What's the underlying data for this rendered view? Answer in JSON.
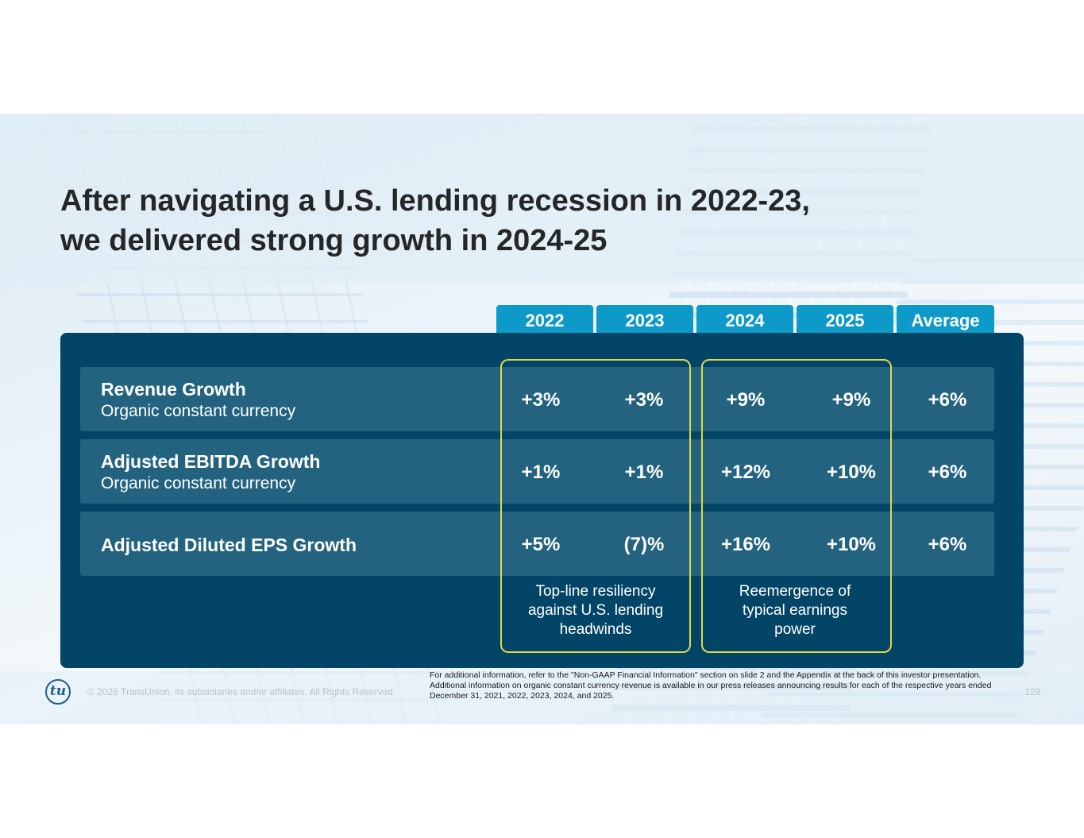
{
  "title_line1": "After navigating a U.S. lending recession in 2022-23,",
  "title_line2": "we delivered strong growth in 2024-25",
  "columns": [
    "2022",
    "2023",
    "2024",
    "2025",
    "Average"
  ],
  "rows": [
    {
      "title": "Revenue Growth",
      "subtitle": "Organic constant currency",
      "values": [
        "+3%",
        "+3%",
        "+9%",
        "+9%",
        "+6%"
      ]
    },
    {
      "title": "Adjusted EBITDA Growth",
      "subtitle": "Organic constant currency",
      "values": [
        "+1%",
        "+1%",
        "+12%",
        "+10%",
        "+6%"
      ]
    },
    {
      "title": "Adjusted Diluted EPS Growth",
      "subtitle": "",
      "values": [
        "+5%",
        "(7)%",
        "+16%",
        "+10%",
        "+6%"
      ]
    }
  ],
  "notes": {
    "left_line1": "Top-line resiliency",
    "left_line2": "against U.S. lending",
    "left_line3": "headwinds",
    "right_line1": "Reemergence of",
    "right_line2": "typical earnings",
    "right_line3": "power"
  },
  "footer": {
    "logo_text": "tu",
    "copyright": "© 2026 TransUnion, its subsidiaries and/or affiliates. All Rights Reserved.",
    "footnote": "For additional information, refer to the \"Non-GAAP Financial Information\" section on slide 2 and the Appendix at the back of this investor presentation. Additional information on organic constant currency revenue is available in our press releases announcing results for each of the respective years ended December 31, 2021, 2022, 2023, 2024, and 2025.",
    "page_number": "129"
  },
  "colors": {
    "panel": "#034567",
    "row": "#236380",
    "tab": "#0e9ac9",
    "highlight_frame": "#e2d84a"
  }
}
